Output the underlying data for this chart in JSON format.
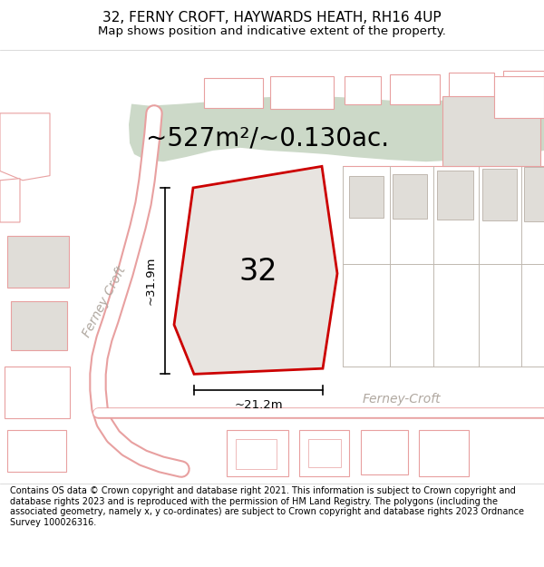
{
  "title": "32, FERNY CROFT, HAYWARDS HEATH, RH16 4UP",
  "subtitle": "Map shows position and indicative extent of the property.",
  "area_text": "~527m²/~0.130ac.",
  "label_32": "32",
  "dim_height": "~31.9m",
  "dim_width": "~21.2m",
  "street_label_diag": "Ferney Croft",
  "street_label_horiz": "Ferney-Croft",
  "footer": "Contains OS data © Crown copyright and database right 2021. This information is subject to Crown copyright and database rights 2023 and is reproduced with the permission of HM Land Registry. The polygons (including the associated geometry, namely x, y co-ordinates) are subject to Crown copyright and database rights 2023 Ordnance Survey 100026316.",
  "map_bg": "#ffffff",
  "green_color": "#ccd9c8",
  "plot_fill": "#e8e8e8",
  "red_color": "#cc0000",
  "pink_color": "#e8a0a0",
  "gray_color": "#c0b8b0",
  "title_fontsize": 11,
  "subtitle_fontsize": 9.5,
  "area_fontsize": 20,
  "label_fontsize": 24,
  "dim_fontsize": 9.5,
  "footer_fontsize": 7.0,
  "street_fontsize": 10
}
